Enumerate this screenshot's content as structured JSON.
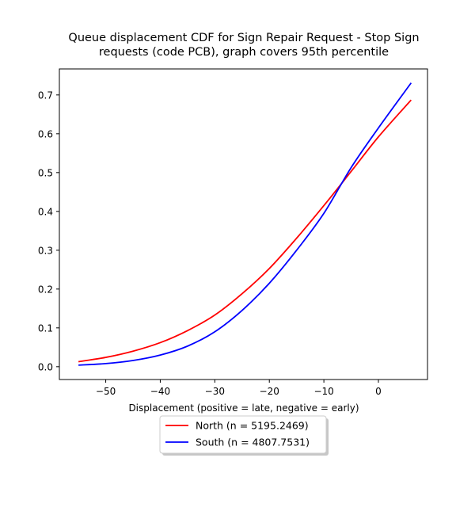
{
  "chart_data": {
    "type": "line",
    "title_line1": "Queue displacement CDF for Sign Repair Request - Stop Sign",
    "title_line2": "requests (code PCB), graph covers 95th percentile",
    "xlabel": "Displacement (positive = late, negative = early)",
    "ylabel": "",
    "xlim": [
      -58.5,
      9
    ],
    "ylim": [
      -0.033,
      0.767
    ],
    "xticks": [
      -50,
      -40,
      -30,
      -20,
      -10,
      0
    ],
    "xtick_labels": [
      "−50",
      "−40",
      "−30",
      "−20",
      "−10",
      "0"
    ],
    "yticks": [
      0.0,
      0.1,
      0.2,
      0.3,
      0.4,
      0.5,
      0.6,
      0.7
    ],
    "ytick_labels": [
      "0.0",
      "0.1",
      "0.2",
      "0.3",
      "0.4",
      "0.5",
      "0.6",
      "0.7"
    ],
    "grid": false,
    "legend_placement": "below",
    "series": [
      {
        "name": "North (n = 5195.2469)",
        "color": "#ff0000",
        "x": [
          -55,
          -50,
          -45,
          -40,
          -35,
          -30,
          -25,
          -20,
          -15,
          -10,
          -5,
          0,
          6
        ],
        "y": [
          0.013,
          0.024,
          0.04,
          0.062,
          0.093,
          0.133,
          0.188,
          0.253,
          0.331,
          0.415,
          0.503,
          0.592,
          0.687
        ]
      },
      {
        "name": "South (n = 4807.7531)",
        "color": "#0000ff",
        "x": [
          -55,
          -50,
          -45,
          -40,
          -35,
          -30,
          -25,
          -20,
          -15,
          -10,
          -5,
          0,
          6
        ],
        "y": [
          0.004,
          0.008,
          0.016,
          0.03,
          0.053,
          0.09,
          0.145,
          0.215,
          0.3,
          0.395,
          0.513,
          0.615,
          0.731
        ]
      }
    ]
  }
}
